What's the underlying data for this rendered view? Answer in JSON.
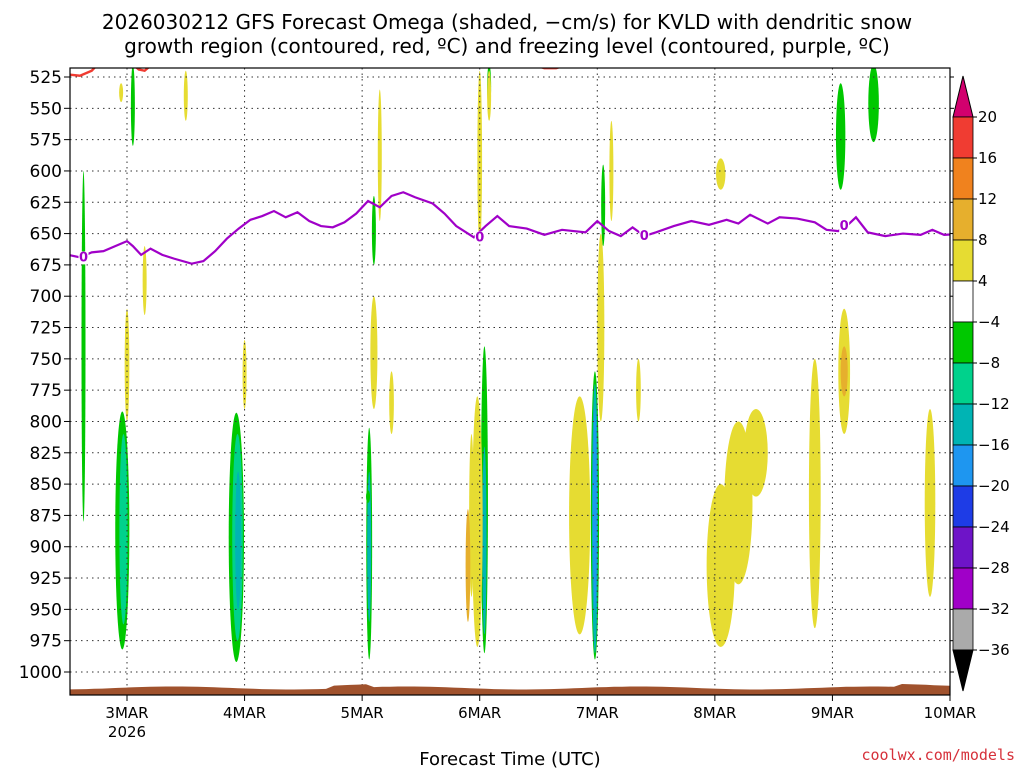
{
  "chart_data": {
    "type": "heatmap",
    "title_line1": "2026030212 GFS Forecast Omega (shaded, −cm/s) for KVLD with dendritic snow",
    "title_line2": "growth region (contoured, red, ºC) and freezing level (contoured, purple, ºC)",
    "xlabel": "Forecast Time (UTC)",
    "credit": "coolwx.com/models",
    "x_ticks": [
      {
        "label": "3MAR",
        "sub": "2026",
        "day": 3
      },
      {
        "label": "4MAR",
        "sub": "",
        "day": 4
      },
      {
        "label": "5MAR",
        "sub": "",
        "day": 5
      },
      {
        "label": "6MAR",
        "sub": "",
        "day": 6
      },
      {
        "label": "7MAR",
        "sub": "",
        "day": 7
      },
      {
        "label": "8MAR",
        "sub": "",
        "day": 8
      },
      {
        "label": "9MAR",
        "sub": "",
        "day": 9
      },
      {
        "label": "10MAR",
        "sub": "",
        "day": 10
      }
    ],
    "xlim_days": [
      2.5,
      10.15
    ],
    "y_ticks": [
      "525",
      "550",
      "575",
      "600",
      "625",
      "650",
      "675",
      "700",
      "725",
      "750",
      "775",
      "800",
      "825",
      "850",
      "875",
      "900",
      "925",
      "950",
      "975",
      "1000"
    ],
    "ylim_hpa": [
      515,
      1020
    ],
    "grid": true,
    "colorbar": {
      "labels": [
        "20",
        "16",
        "12",
        "8",
        "4",
        "−4",
        "−8",
        "−12",
        "−16",
        "−20",
        "−24",
        "−28",
        "−32",
        "−36"
      ],
      "colors": [
        "#d2006e",
        "#f03c32",
        "#f0821e",
        "#e6af2d",
        "#e6dc32",
        "#ffffff",
        "#00c800",
        "#00d28c",
        "#00b4b4",
        "#1e96f0",
        "#1e3ce6",
        "#6e14c8",
        "#a000c8",
        "#aaaaaa",
        "#000000"
      ]
    },
    "freezing_level": {
      "color": "#a000c8",
      "label": "0",
      "points": [
        [
          2.5,
          667
        ],
        [
          2.6,
          669
        ],
        [
          2.7,
          665
        ],
        [
          2.8,
          664
        ],
        [
          2.9,
          660
        ],
        [
          3.0,
          656
        ],
        [
          3.05,
          660
        ],
        [
          3.12,
          667
        ],
        [
          3.2,
          662
        ],
        [
          3.3,
          667
        ],
        [
          3.4,
          670
        ],
        [
          3.55,
          674
        ],
        [
          3.65,
          672
        ],
        [
          3.75,
          664
        ],
        [
          3.85,
          654
        ],
        [
          3.95,
          646
        ],
        [
          4.05,
          639
        ],
        [
          4.15,
          636
        ],
        [
          4.25,
          632
        ],
        [
          4.35,
          637
        ],
        [
          4.45,
          633
        ],
        [
          4.55,
          640
        ],
        [
          4.65,
          644
        ],
        [
          4.75,
          645
        ],
        [
          4.85,
          641
        ],
        [
          4.95,
          634
        ],
        [
          5.05,
          624
        ],
        [
          5.15,
          629
        ],
        [
          5.25,
          620
        ],
        [
          5.35,
          617
        ],
        [
          5.45,
          621
        ],
        [
          5.6,
          626
        ],
        [
          5.7,
          634
        ],
        [
          5.8,
          644
        ],
        [
          5.95,
          653
        ],
        [
          6.05,
          644
        ],
        [
          6.15,
          636
        ],
        [
          6.25,
          644
        ],
        [
          6.4,
          646
        ],
        [
          6.55,
          651
        ],
        [
          6.7,
          647
        ],
        [
          6.9,
          649
        ],
        [
          7.0,
          640
        ],
        [
          7.1,
          648
        ],
        [
          7.2,
          652
        ],
        [
          7.3,
          645
        ],
        [
          7.4,
          652
        ],
        [
          7.5,
          649
        ],
        [
          7.65,
          644
        ],
        [
          7.8,
          640
        ],
        [
          7.95,
          643
        ],
        [
          8.1,
          639
        ],
        [
          8.2,
          642
        ],
        [
          8.3,
          635
        ],
        [
          8.45,
          642
        ],
        [
          8.55,
          637
        ],
        [
          8.7,
          638
        ],
        [
          8.85,
          641
        ],
        [
          8.95,
          647
        ],
        [
          9.05,
          648
        ],
        [
          9.12,
          644
        ],
        [
          9.2,
          637
        ],
        [
          9.3,
          649
        ],
        [
          9.45,
          652
        ],
        [
          9.6,
          650
        ],
        [
          9.75,
          651
        ],
        [
          9.85,
          647
        ],
        [
          9.95,
          651
        ],
        [
          10.15,
          650
        ]
      ]
    },
    "dgz_contours": [
      {
        "color": "#f03c32",
        "points": [
          [
            2.5,
            523
          ],
          [
            2.6,
            524
          ],
          [
            2.7,
            520
          ],
          [
            2.75,
            515
          ]
        ]
      },
      {
        "color": "#f03c32",
        "points": [
          [
            3.05,
            515
          ],
          [
            3.1,
            519
          ],
          [
            3.15,
            520
          ],
          [
            3.2,
            516
          ],
          [
            3.22,
            515
          ]
        ]
      },
      {
        "color": "#f03c32",
        "points": [
          [
            6.45,
            515
          ],
          [
            6.55,
            518
          ],
          [
            6.65,
            518
          ],
          [
            6.75,
            515
          ]
        ]
      }
    ],
    "omega_regions": [
      {
        "day": 2.96,
        "p_top": 792,
        "p_bot": 982,
        "hw": 0.06,
        "color": "#00c800"
      },
      {
        "day": 2.97,
        "p_top": 810,
        "p_bot": 962,
        "hw": 0.035,
        "color": "#00d28c"
      },
      {
        "day": 3.93,
        "p_top": 793,
        "p_bot": 992,
        "hw": 0.065,
        "color": "#00c800"
      },
      {
        "day": 3.94,
        "p_top": 810,
        "p_bot": 975,
        "hw": 0.045,
        "color": "#00d28c"
      },
      {
        "day": 3.945,
        "p_top": 840,
        "p_bot": 950,
        "hw": 0.025,
        "color": "#00b4b4"
      },
      {
        "day": 5.06,
        "p_top": 805,
        "p_bot": 990,
        "hw": 0.025,
        "color": "#00c800"
      },
      {
        "day": 5.06,
        "p_top": 840,
        "p_bot": 960,
        "hw": 0.015,
        "color": "#00b4b4"
      },
      {
        "day": 6.04,
        "p_top": 740,
        "p_bot": 985,
        "hw": 0.03,
        "color": "#00c800"
      },
      {
        "day": 6.04,
        "p_top": 820,
        "p_bot": 970,
        "hw": 0.018,
        "color": "#00b4b4"
      },
      {
        "day": 6.98,
        "p_top": 760,
        "p_bot": 990,
        "hw": 0.035,
        "color": "#00c800"
      },
      {
        "day": 6.98,
        "p_top": 770,
        "p_bot": 985,
        "hw": 0.025,
        "color": "#00b4b4"
      },
      {
        "day": 6.98,
        "p_top": 790,
        "p_bot": 950,
        "hw": 0.012,
        "color": "#1e96f0"
      },
      {
        "day": 2.63,
        "p_top": 600,
        "p_bot": 880,
        "hw": 0.012,
        "color": "#00c800"
      },
      {
        "day": 3.05,
        "p_top": 515,
        "p_bot": 580,
        "hw": 0.015,
        "color": "#00c800"
      },
      {
        "day": 9.07,
        "p_top": 530,
        "p_bot": 615,
        "hw": 0.04,
        "color": "#00c800"
      },
      {
        "day": 9.35,
        "p_top": 515,
        "p_bot": 577,
        "hw": 0.045,
        "color": "#00c800"
      },
      {
        "day": 6.08,
        "p_top": 515,
        "p_bot": 550,
        "hw": 0.012,
        "color": "#00c800"
      },
      {
        "day": 5.1,
        "p_top": 620,
        "p_bot": 675,
        "hw": 0.01,
        "color": "#00c800"
      },
      {
        "day": 7.05,
        "p_top": 595,
        "p_bot": 660,
        "hw": 0.01,
        "color": "#00c800"
      },
      {
        "day": 3.0,
        "p_top": 710,
        "p_bot": 800,
        "hw": 0.02,
        "color": "#e6dc32"
      },
      {
        "day": 2.95,
        "p_top": 530,
        "p_bot": 545,
        "hw": 0.012,
        "color": "#e6dc32"
      },
      {
        "day": 3.5,
        "p_top": 520,
        "p_bot": 560,
        "hw": 0.015,
        "color": "#e6dc32"
      },
      {
        "day": 3.15,
        "p_top": 660,
        "p_bot": 715,
        "hw": 0.012,
        "color": "#e6dc32"
      },
      {
        "day": 4.0,
        "p_top": 735,
        "p_bot": 790,
        "hw": 0.015,
        "color": "#e6dc32"
      },
      {
        "day": 5.15,
        "p_top": 535,
        "p_bot": 640,
        "hw": 0.015,
        "color": "#e6dc32"
      },
      {
        "day": 5.1,
        "p_top": 700,
        "p_bot": 790,
        "hw": 0.03,
        "color": "#e6dc32"
      },
      {
        "day": 5.25,
        "p_top": 760,
        "p_bot": 810,
        "hw": 0.02,
        "color": "#e6dc32"
      },
      {
        "day": 5.98,
        "p_top": 780,
        "p_bot": 980,
        "hw": 0.045,
        "color": "#e6dc32"
      },
      {
        "day": 5.93,
        "p_top": 810,
        "p_bot": 940,
        "hw": 0.02,
        "color": "#e6dc32"
      },
      {
        "day": 6.0,
        "p_top": 520,
        "p_bot": 660,
        "hw": 0.02,
        "color": "#e6dc32"
      },
      {
        "day": 6.08,
        "p_top": 520,
        "p_bot": 560,
        "hw": 0.01,
        "color": "#e6dc32"
      },
      {
        "day": 6.85,
        "p_top": 780,
        "p_bot": 970,
        "hw": 0.09,
        "color": "#e6dc32"
      },
      {
        "day": 7.03,
        "p_top": 650,
        "p_bot": 800,
        "hw": 0.03,
        "color": "#e6dc32"
      },
      {
        "day": 7.12,
        "p_top": 560,
        "p_bot": 640,
        "hw": 0.012,
        "color": "#e6dc32"
      },
      {
        "day": 7.35,
        "p_top": 750,
        "p_bot": 800,
        "hw": 0.02,
        "color": "#e6dc32"
      },
      {
        "day": 8.05,
        "p_top": 590,
        "p_bot": 615,
        "hw": 0.04,
        "color": "#e6dc32"
      },
      {
        "day": 8.05,
        "p_top": 850,
        "p_bot": 980,
        "hw": 0.12,
        "color": "#e6dc32"
      },
      {
        "day": 8.2,
        "p_top": 800,
        "p_bot": 930,
        "hw": 0.12,
        "color": "#e6dc32"
      },
      {
        "day": 8.35,
        "p_top": 790,
        "p_bot": 860,
        "hw": 0.1,
        "color": "#e6dc32"
      },
      {
        "day": 8.85,
        "p_top": 750,
        "p_bot": 965,
        "hw": 0.05,
        "color": "#e6dc32"
      },
      {
        "day": 9.1,
        "p_top": 710,
        "p_bot": 810,
        "hw": 0.05,
        "color": "#e6dc32"
      },
      {
        "day": 9.1,
        "p_top": 740,
        "p_bot": 780,
        "hw": 0.03,
        "color": "#e6af2d"
      },
      {
        "day": 9.83,
        "p_top": 790,
        "p_bot": 940,
        "hw": 0.045,
        "color": "#e6dc32"
      },
      {
        "day": 5.9,
        "p_top": 870,
        "p_bot": 960,
        "hw": 0.02,
        "color": "#e6af2d"
      },
      {
        "day": 5.05,
        "p_top": 855,
        "p_bot": 865,
        "hw": 0.012,
        "color": "#00c800"
      }
    ]
  }
}
